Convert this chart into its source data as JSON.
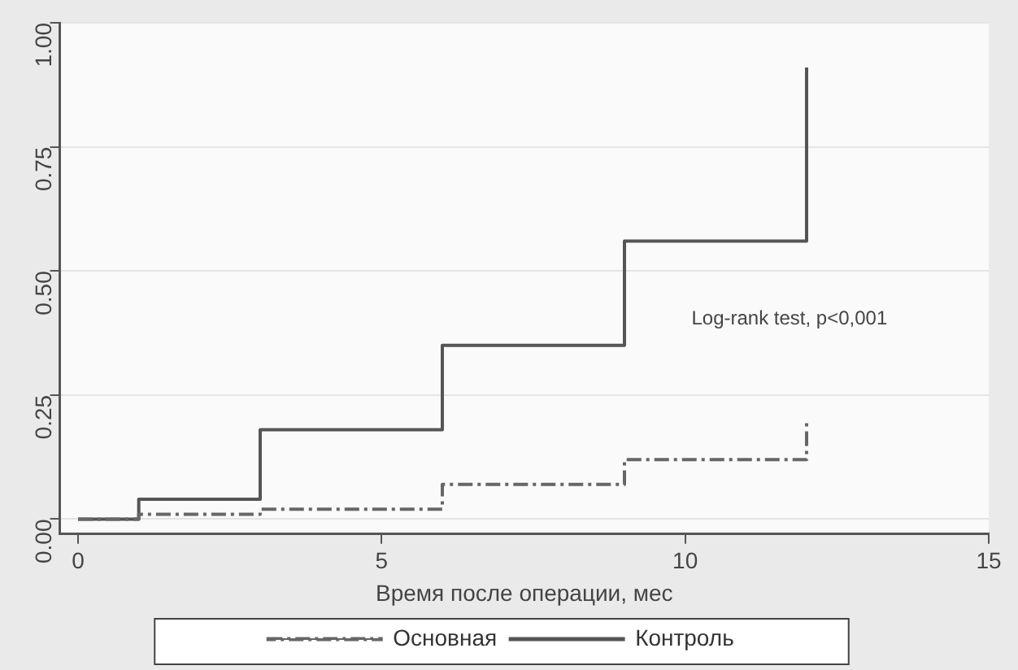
{
  "chart_data": {
    "type": "step",
    "xlabel": "Время после операции, мес",
    "annotations": [
      "Log-rank test, p<0,001"
    ],
    "series": [
      {
        "name": "Основная",
        "color": "#666666",
        "line_style": "dashdot",
        "x": [
          0,
          1,
          3,
          6,
          9,
          12,
          12
        ],
        "values": [
          0,
          0.01,
          0.02,
          0.07,
          0.12,
          0.12,
          0.2
        ]
      },
      {
        "name": "Контроль",
        "color": "#555555",
        "line_style": "solid",
        "x": [
          0,
          1,
          3,
          6,
          9,
          12
        ],
        "values": [
          0,
          0.04,
          0.18,
          0.35,
          0.56,
          0.91
        ]
      }
    ],
    "xlim": [
      -0.3,
      15
    ],
    "xticks": [
      0,
      5,
      10,
      15
    ],
    "ylim": [
      -0.03,
      1
    ],
    "yticks": [
      {
        "value": 0,
        "label": "0.00"
      },
      {
        "value": 0.25,
        "label": "0.25"
      },
      {
        "value": 0.5,
        "label": "0.50"
      },
      {
        "value": 0.75,
        "label": "0.75"
      },
      {
        "value": 1,
        "label": "1.00"
      }
    ],
    "grid": "y",
    "legend": "bottom",
    "marker": "none"
  }
}
